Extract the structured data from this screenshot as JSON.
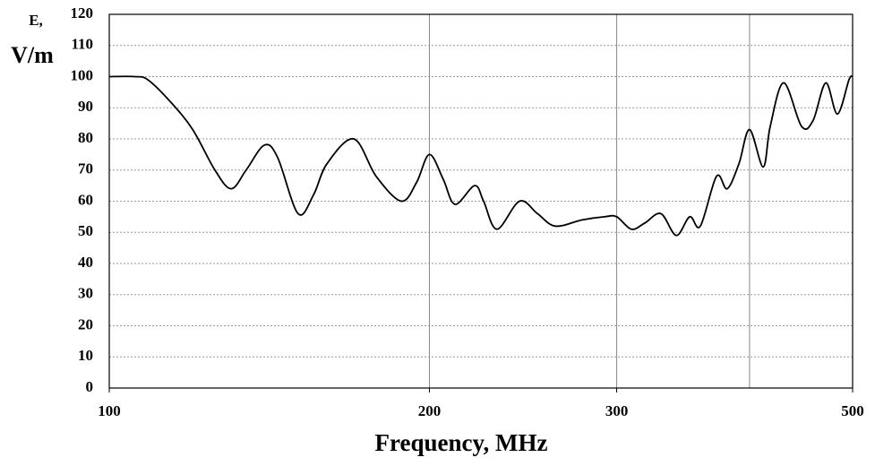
{
  "chart_data": {
    "type": "line",
    "ylabel_top": "E,",
    "ylabel": "V/m",
    "xlabel": "Frequency, MHz",
    "xscale": "log",
    "xlim": [
      100,
      500
    ],
    "xticks": [
      100,
      200,
      300,
      500
    ],
    "xgrid": [
      200,
      300,
      400
    ],
    "ylim": [
      0,
      120
    ],
    "yticks": [
      0,
      10,
      20,
      30,
      40,
      50,
      60,
      70,
      80,
      90,
      100,
      110,
      120
    ],
    "grid": true,
    "series": [
      {
        "name": "E",
        "color": "#000000",
        "x": [
          100,
          105.6,
          108.7,
          114.1,
          119.8,
          125.7,
          130.2,
          134.5,
          139.9,
          144.0,
          150.5,
          155.6,
          160.2,
          169.8,
          178.2,
          188.2,
          194.5,
          200,
          206.1,
          211.4,
          220.6,
          224.9,
          231.5,
          243.1,
          252.7,
          262.7,
          278.4,
          292.2,
          300,
          309.7,
          318.9,
          330.2,
          341.3,
          351.4,
          359.6,
          372.4,
          381.1,
          390.9,
          400,
          412.0,
          418.3,
          430.7,
          447.7,
          459.1,
          471.8,
          483.8,
          496.1,
          500
        ],
        "values": [
          100,
          100,
          99,
          92,
          83,
          70,
          64,
          70,
          78,
          74,
          56,
          62,
          72,
          80,
          68,
          60,
          66,
          75,
          67,
          59,
          65,
          60,
          51,
          60,
          56,
          52,
          54,
          55,
          55,
          51,
          53,
          56,
          49,
          55,
          52,
          68,
          64,
          72,
          83,
          71,
          84,
          98,
          84,
          86,
          98,
          88,
          99,
          100
        ]
      }
    ]
  }
}
